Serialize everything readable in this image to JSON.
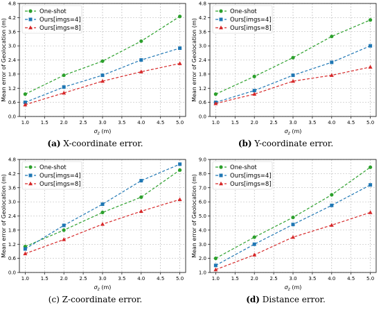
{
  "chart_data": [
    {
      "type": "line",
      "caption_prefix": "(a)",
      "caption_text": "X-coordinate error.",
      "xlabel": "σ_z (m)",
      "ylabel": "Mean error of Geolocation (m)",
      "x": [
        1.0,
        2.0,
        3.0,
        4.0,
        5.0
      ],
      "xlim": [
        0.85,
        5.15
      ],
      "xticks": [
        "1.0",
        "1.5",
        "2.0",
        "2.5",
        "3.0",
        "3.5",
        "4.0",
        "4.5",
        "5.0"
      ],
      "ylim": [
        0.0,
        4.8
      ],
      "yticks": [
        "0.0",
        "0.6",
        "1.2",
        "1.8",
        "2.4",
        "3.0",
        "3.6",
        "4.2",
        "4.8"
      ],
      "grid": true,
      "legend_position": "top-left",
      "series": [
        {
          "name": "One-shot",
          "color": "#2ca02c",
          "marker": "circle",
          "values": [
            0.95,
            1.75,
            2.35,
            3.2,
            4.25
          ]
        },
        {
          "name": "Ours[imgs=4]",
          "color": "#1f77b4",
          "marker": "square",
          "values": [
            0.6,
            1.25,
            1.75,
            2.4,
            2.9
          ]
        },
        {
          "name": "Ours[imgs=8]",
          "color": "#d62728",
          "marker": "triangle",
          "values": [
            0.5,
            1.0,
            1.5,
            1.9,
            2.25
          ]
        }
      ]
    },
    {
      "type": "line",
      "caption_prefix": "(b)",
      "caption_text": "Y-coordinate error.",
      "xlabel": "σ_z (m)",
      "ylabel": "Mean error of Geolocation (m)",
      "x": [
        1.0,
        2.0,
        3.0,
        4.0,
        5.0
      ],
      "xlim": [
        0.85,
        5.15
      ],
      "xticks": [
        "1.0",
        "1.5",
        "2.0",
        "2.5",
        "3.0",
        "3.5",
        "4.0",
        "4.5",
        "5.0"
      ],
      "ylim": [
        0.0,
        4.8
      ],
      "yticks": [
        "0.0",
        "0.6",
        "1.2",
        "1.8",
        "2.4",
        "3.0",
        "3.6",
        "4.2",
        "4.8"
      ],
      "grid": true,
      "legend_position": "top-left",
      "series": [
        {
          "name": "One-shot",
          "color": "#2ca02c",
          "marker": "circle",
          "values": [
            0.95,
            1.7,
            2.5,
            3.4,
            4.1
          ]
        },
        {
          "name": "Ours[imgs=4]",
          "color": "#1f77b4",
          "marker": "square",
          "values": [
            0.6,
            1.1,
            1.75,
            2.3,
            3.0
          ]
        },
        {
          "name": "Ours[imgs=8]",
          "color": "#d62728",
          "marker": "triangle",
          "values": [
            0.55,
            0.95,
            1.5,
            1.75,
            2.1
          ]
        }
      ]
    },
    {
      "type": "line",
      "caption_prefix": "(c)",
      "caption_text": "Z-coordinate error.",
      "xlabel": "σ_z (m)",
      "ylabel": "Mean error of Geolocation (m)",
      "x": [
        1.0,
        2.0,
        3.0,
        4.0,
        5.0
      ],
      "xlim": [
        0.85,
        5.15
      ],
      "xticks": [
        "1.0",
        "1.5",
        "2.0",
        "2.5",
        "3.0",
        "3.5",
        "4.0",
        "4.5",
        "5.0"
      ],
      "ylim": [
        0.0,
        4.8
      ],
      "yticks": [
        "0.0",
        "0.6",
        "1.2",
        "1.8",
        "2.4",
        "3.0",
        "3.6",
        "4.2",
        "4.8"
      ],
      "grid": true,
      "legend_position": "top-left",
      "series": [
        {
          "name": "One-shot",
          "color": "#2ca02c",
          "marker": "circle",
          "values": [
            1.1,
            1.8,
            2.55,
            3.2,
            4.35
          ]
        },
        {
          "name": "Ours[imgs=4]",
          "color": "#1f77b4",
          "marker": "square",
          "values": [
            1.0,
            2.0,
            2.9,
            3.9,
            4.6
          ]
        },
        {
          "name": "Ours[imgs=8]",
          "color": "#d62728",
          "marker": "triangle",
          "values": [
            0.8,
            1.4,
            2.05,
            2.6,
            3.1
          ]
        }
      ]
    },
    {
      "type": "line",
      "caption_prefix": "(d)",
      "caption_text": "Distance error.",
      "xlabel": "σ_z (m)",
      "ylabel": "Mean error of Geolocation (m)",
      "x": [
        1.0,
        2.0,
        3.0,
        4.0,
        5.0
      ],
      "xlim": [
        0.85,
        5.15
      ],
      "xticks": [
        "1.0",
        "1.5",
        "2.0",
        "2.5",
        "3.0",
        "3.5",
        "4.0",
        "4.5",
        "5.0"
      ],
      "ylim": [
        1.0,
        9.0
      ],
      "yticks": [
        "1.0",
        "2.0",
        "3.0",
        "4.0",
        "5.0",
        "6.0",
        "7.0",
        "8.0",
        "9.0"
      ],
      "grid": true,
      "legend_position": "top-left",
      "series": [
        {
          "name": "One-shot",
          "color": "#2ca02c",
          "marker": "circle",
          "values": [
            2.0,
            3.5,
            4.9,
            6.5,
            8.45
          ]
        },
        {
          "name": "Ours[imgs=4]",
          "color": "#1f77b4",
          "marker": "square",
          "values": [
            1.5,
            3.0,
            4.4,
            5.75,
            7.2
          ]
        },
        {
          "name": "Ours[imgs=8]",
          "color": "#d62728",
          "marker": "triangle",
          "values": [
            1.2,
            2.25,
            3.5,
            4.35,
            5.25
          ]
        }
      ]
    }
  ]
}
